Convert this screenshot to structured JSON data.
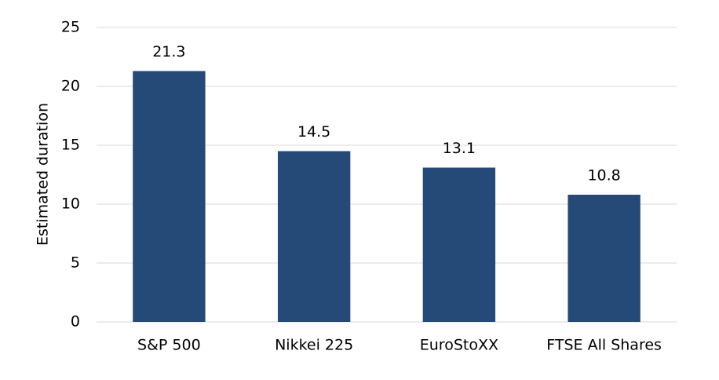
{
  "chart_data": {
    "type": "bar",
    "y_label": "Estimated duration",
    "categories": [
      "S&P 500",
      "Nikkei 225",
      "EuroStoXX",
      "FTSE All Shares"
    ],
    "values": [
      21.3,
      14.5,
      13.1,
      10.8
    ],
    "color": "#254a77",
    "ylim": [
      0,
      25
    ],
    "yticks": [
      0,
      5,
      10,
      15,
      20,
      25
    ],
    "grid": true
  }
}
